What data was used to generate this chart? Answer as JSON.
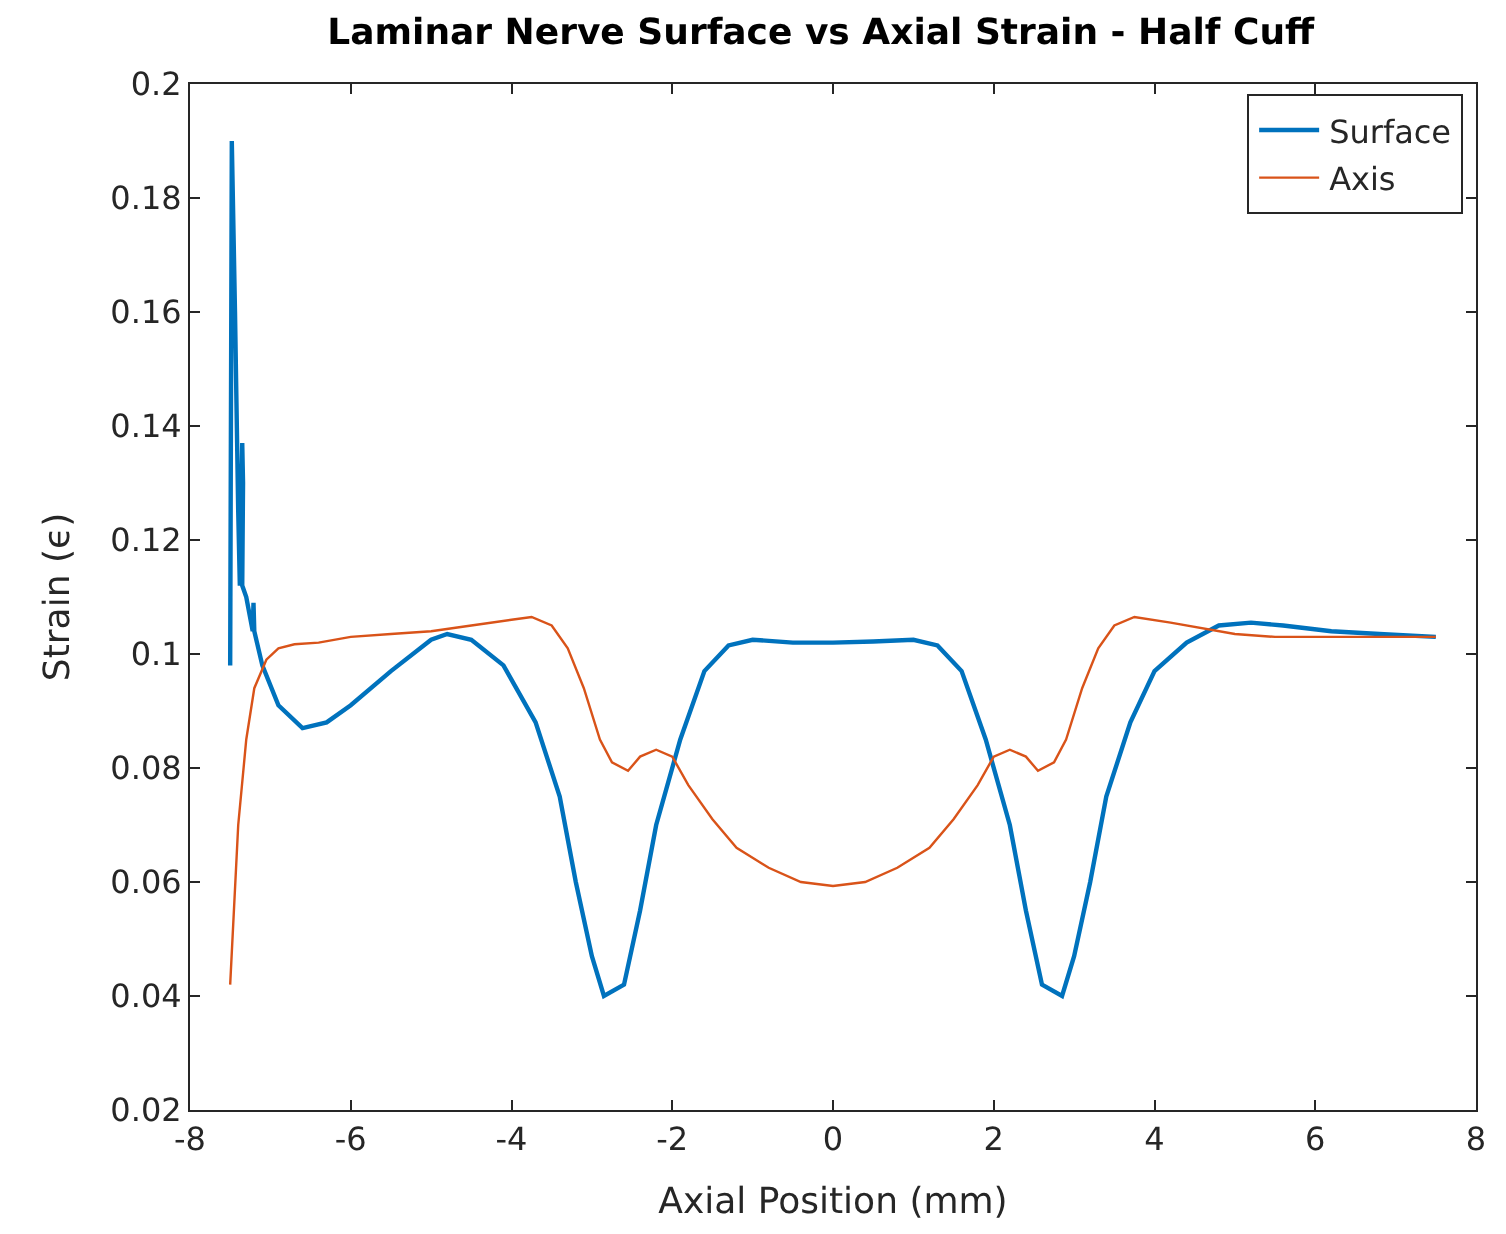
{
  "chart_data": {
    "type": "line",
    "title": "Laminar Nerve Surface vs Axial Strain - Half Cuff",
    "xlabel": "Axial Position (mm)",
    "ylabel": "Strain (ϵ)",
    "xlim": [
      -8,
      8
    ],
    "xticks": [
      -8,
      -6,
      -4,
      -2,
      0,
      2,
      4,
      6,
      8
    ],
    "ylim": [
      0.02,
      0.2
    ],
    "yticks": [
      0.02,
      0.04,
      0.06,
      0.08,
      0.1,
      0.12,
      0.14,
      0.16,
      0.18,
      0.2
    ],
    "grid": false,
    "legend": "top right",
    "marker": "none",
    "line_style": "solid",
    "series": [
      {
        "name": "Surface",
        "color": "#0072bd",
        "x": [
          -7.5,
          -7.48,
          -7.44,
          -7.4,
          -7.38,
          -7.35,
          -7.34,
          -7.35,
          -7.3,
          -7.22,
          -7.21,
          -7.2,
          -7.1,
          -6.9,
          -6.6,
          -6.3,
          -6.0,
          -5.5,
          -5.0,
          -4.8,
          -4.5,
          -4.1,
          -3.7,
          -3.4,
          -3.2,
          -3.0,
          -2.85,
          -2.6,
          -2.4,
          -2.2,
          -1.9,
          -1.6,
          -1.3,
          -1.0,
          -0.5,
          0,
          0.5,
          1.0,
          1.3,
          1.6,
          1.9,
          2.2,
          2.4,
          2.6,
          2.85,
          3.0,
          3.2,
          3.4,
          3.7,
          4.0,
          4.4,
          4.8,
          5.2,
          5.6,
          6.2,
          6.8,
          7.5
        ],
        "values": [
          0.098,
          0.19,
          0.16,
          0.125,
          0.112,
          0.137,
          0.13,
          0.112,
          0.11,
          0.104,
          0.109,
          0.104,
          0.098,
          0.091,
          0.087,
          0.088,
          0.091,
          0.097,
          0.1025,
          0.1035,
          0.1025,
          0.098,
          0.088,
          0.075,
          0.06,
          0.047,
          0.04,
          0.042,
          0.055,
          0.07,
          0.085,
          0.097,
          0.1015,
          0.1025,
          0.102,
          0.102,
          0.1022,
          0.1025,
          0.1015,
          0.097,
          0.085,
          0.07,
          0.055,
          0.042,
          0.04,
          0.047,
          0.06,
          0.075,
          0.088,
          0.097,
          0.102,
          0.105,
          0.1055,
          0.105,
          0.104,
          0.1035,
          0.103
        ]
      },
      {
        "name": "Axis",
        "color": "#d95319",
        "x": [
          -7.5,
          -7.4,
          -7.3,
          -7.2,
          -7.05,
          -6.9,
          -6.7,
          -6.4,
          -6.0,
          -5.5,
          -5.0,
          -4.5,
          -4.0,
          -3.75,
          -3.5,
          -3.3,
          -3.1,
          -2.9,
          -2.75,
          -2.55,
          -2.4,
          -2.2,
          -2.0,
          -1.8,
          -1.5,
          -1.2,
          -0.8,
          -0.4,
          0,
          0.4,
          0.8,
          1.2,
          1.5,
          1.8,
          2.0,
          2.2,
          2.4,
          2.55,
          2.75,
          2.9,
          3.1,
          3.3,
          3.5,
          3.75,
          4.2,
          5.0,
          5.5,
          6.5,
          7.5
        ],
        "values": [
          0.042,
          0.07,
          0.085,
          0.094,
          0.099,
          0.101,
          0.1017,
          0.102,
          0.103,
          0.1035,
          0.104,
          0.105,
          0.106,
          0.1065,
          0.105,
          0.101,
          0.094,
          0.085,
          0.081,
          0.0795,
          0.082,
          0.0832,
          0.082,
          0.077,
          0.071,
          0.066,
          0.0625,
          0.06,
          0.0593,
          0.06,
          0.0625,
          0.066,
          0.071,
          0.077,
          0.082,
          0.0832,
          0.082,
          0.0795,
          0.081,
          0.085,
          0.094,
          0.101,
          0.105,
          0.1065,
          0.1055,
          0.1035,
          0.103,
          0.103,
          0.103
        ]
      }
    ]
  }
}
